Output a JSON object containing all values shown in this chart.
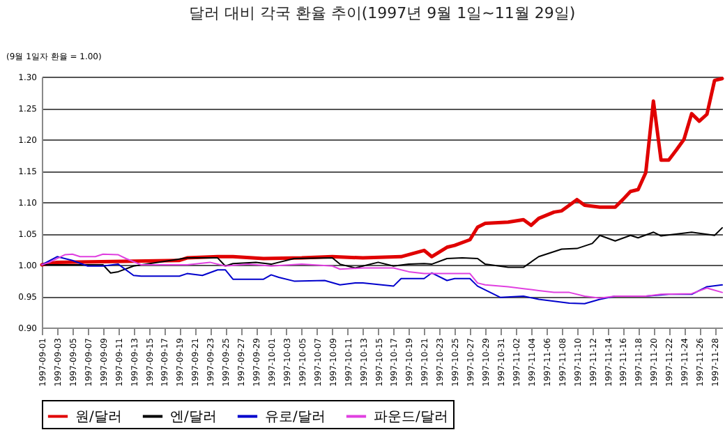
{
  "chart_data": {
    "type": "line",
    "title": "달러 대비 각국 환율 추이(1997년 9월 1일~11월 29일)",
    "ylabel": "(9월 1일자 환율 = 1.00)",
    "xlim": [
      "1997-09-01",
      "1997-11-29"
    ],
    "ylim": [
      0.9,
      1.3
    ],
    "yticks": [
      {
        "value": 0.9,
        "label": "0.90"
      },
      {
        "value": 0.95,
        "label": "0.95"
      },
      {
        "value": 1,
        "label": "1.00"
      },
      {
        "value": 1.05,
        "label": "1.05"
      },
      {
        "value": 1.1,
        "label": "1.10"
      },
      {
        "value": 1.15,
        "label": "1.15"
      },
      {
        "value": 1.2,
        "label": "1.20"
      },
      {
        "value": 1.25,
        "label": "1.25"
      },
      {
        "value": 1.3,
        "label": "1.30"
      }
    ],
    "xticks": [
      "1997-09-01",
      "1997-09-03",
      "1997-09-05",
      "1997-09-07",
      "1997-09-09",
      "1997-09-11",
      "1997-09-13",
      "1997-09-15",
      "1997-09-17",
      "1997-09-19",
      "1997-09-21",
      "1997-09-23",
      "1997-09-25",
      "1997-09-27",
      "1997-09-29",
      "1997-10-01",
      "1997-10-03",
      "1997-10-05",
      "1997-10-07",
      "1997-10-09",
      "1997-10-11",
      "1997-10-13",
      "1997-10-15",
      "1997-10-17",
      "1997-10-19",
      "1997-10-21",
      "1997-10-23",
      "1997-10-25",
      "1997-10-27",
      "1997-10-29",
      "1997-10-31",
      "1997-11-02",
      "1997-11-04",
      "1997-11-06",
      "1997-11-08",
      "1997-11-10",
      "1997-11-12",
      "1997-11-14",
      "1997-11-16",
      "1997-11-18",
      "1997-11-20",
      "1997-11-22",
      "1997-11-24",
      "1997-11-26",
      "1997-11-28"
    ],
    "grid": "y",
    "legend": "bottom",
    "marker": "none",
    "line_style": "solid",
    "series": [
      {
        "name": "원/달러",
        "color": "#e00000",
        "x": [
          "1997-09-01",
          "1997-09-03",
          "1997-09-19",
          "1997-09-20",
          "1997-09-24",
          "1997-09-26",
          "1997-09-30",
          "1997-10-05",
          "1997-10-09",
          "1997-10-13",
          "1997-10-18",
          "1997-10-21",
          "1997-10-22",
          "1997-10-24",
          "1997-10-25",
          "1997-10-27",
          "1997-10-28",
          "1997-10-29",
          "1997-11-01",
          "1997-11-03",
          "1997-11-04",
          "1997-11-05",
          "1997-11-07",
          "1997-11-08",
          "1997-11-10",
          "1997-11-11",
          "1997-11-13",
          "1997-11-15",
          "1997-11-16",
          "1997-11-17",
          "1997-11-18",
          "1997-11-19",
          "1997-11-20",
          "1997-11-21",
          "1997-11-22",
          "1997-11-23",
          "1997-11-24",
          "1997-11-25",
          "1997-11-26",
          "1997-11-27",
          "1997-11-28",
          "1997-11-29"
        ],
        "values": [
          1.0,
          1.004,
          1.007,
          1.011,
          1.013,
          1.013,
          1.01,
          1.011,
          1.013,
          1.011,
          1.013,
          1.023,
          1.013,
          1.028,
          1.031,
          1.04,
          1.06,
          1.066,
          1.068,
          1.072,
          1.063,
          1.074,
          1.084,
          1.086,
          1.104,
          1.095,
          1.092,
          1.092,
          1.104,
          1.117,
          1.12,
          1.147,
          1.261,
          1.167,
          1.167,
          1.183,
          1.2,
          1.241,
          1.229,
          1.24,
          1.294,
          1.297
        ]
      },
      {
        "name": "엔/달러",
        "color": "#000000",
        "x": [
          "1997-09-01",
          "1997-09-09",
          "1997-09-10",
          "1997-09-11",
          "1997-09-13",
          "1997-09-20",
          "1997-09-24",
          "1997-09-25",
          "1997-09-26",
          "1997-09-29",
          "1997-10-01",
          "1997-10-04",
          "1997-10-09",
          "1997-10-10",
          "1997-10-12",
          "1997-10-13",
          "1997-10-15",
          "1997-10-17",
          "1997-10-19",
          "1997-10-21",
          "1997-10-22",
          "1997-10-24",
          "1997-10-26",
          "1997-10-28",
          "1997-10-29",
          "1997-11-01",
          "1997-11-03",
          "1997-11-05",
          "1997-11-08",
          "1997-11-10",
          "1997-11-12",
          "1997-11-13",
          "1997-11-15",
          "1997-11-17",
          "1997-11-18",
          "1997-11-20",
          "1997-11-21",
          "1997-11-25",
          "1997-11-28",
          "1997-11-29"
        ],
        "values": [
          1.0,
          1.0,
          0.987,
          0.989,
          0.998,
          1.011,
          1.011,
          0.998,
          1.002,
          1.004,
          1.001,
          1.01,
          1.011,
          1.001,
          0.995,
          0.998,
          1.004,
          0.998,
          1.001,
          1.002,
          1.001,
          1.01,
          1.011,
          1.01,
          1.001,
          0.996,
          0.996,
          1.013,
          1.025,
          1.026,
          1.034,
          1.047,
          1.038,
          1.047,
          1.043,
          1.052,
          1.046,
          1.052,
          1.047,
          1.059
        ]
      },
      {
        "name": "유로/달러",
        "color": "#0000cc",
        "x": [
          "1997-09-01",
          "1997-09-03",
          "1997-09-05",
          "1997-09-07",
          "1997-09-09",
          "1997-09-11",
          "1997-09-13",
          "1997-09-14",
          "1997-09-19",
          "1997-09-20",
          "1997-09-22",
          "1997-09-24",
          "1997-09-25",
          "1997-09-26",
          "1997-09-30",
          "1997-10-01",
          "1997-10-02",
          "1997-10-04",
          "1997-10-08",
          "1997-10-10",
          "1997-10-12",
          "1997-10-13",
          "1997-10-17",
          "1997-10-18",
          "1997-10-21",
          "1997-10-22",
          "1997-10-24",
          "1997-10-25",
          "1997-10-27",
          "1997-10-28",
          "1997-10-31",
          "1997-11-03",
          "1997-11-05",
          "1997-11-09",
          "1997-11-11",
          "1997-11-13",
          "1997-11-15",
          "1997-11-19",
          "1997-11-22",
          "1997-11-25",
          "1997-11-27",
          "1997-11-29"
        ],
        "values": [
          1.0,
          1.013,
          1.007,
          0.998,
          0.998,
          1.001,
          0.983,
          0.982,
          0.982,
          0.986,
          0.983,
          0.992,
          0.992,
          0.977,
          0.977,
          0.984,
          0.98,
          0.974,
          0.975,
          0.968,
          0.971,
          0.971,
          0.966,
          0.978,
          0.978,
          0.987,
          0.975,
          0.978,
          0.978,
          0.966,
          0.948,
          0.95,
          0.945,
          0.939,
          0.938,
          0.945,
          0.95,
          0.95,
          0.953,
          0.953,
          0.965,
          0.968
        ]
      },
      {
        "name": "파운드/달러",
        "color": "#e040e0",
        "x": [
          "1997-09-01",
          "1997-09-02",
          "1997-09-04",
          "1997-09-05",
          "1997-09-06",
          "1997-09-08",
          "1997-09-09",
          "1997-09-11",
          "1997-09-12",
          "1997-09-14",
          "1997-09-20",
          "1997-09-23",
          "1997-09-25",
          "1997-09-28",
          "1997-10-01",
          "1997-10-05",
          "1997-10-09",
          "1997-10-10",
          "1997-10-13",
          "1997-10-16",
          "1997-10-17",
          "1997-10-19",
          "1997-10-21",
          "1997-10-24",
          "1997-10-27",
          "1997-10-28",
          "1997-10-29",
          "1997-11-01",
          "1997-11-03",
          "1997-11-05",
          "1997-11-07",
          "1997-11-09",
          "1997-11-11",
          "1997-11-13",
          "1997-11-15",
          "1997-11-19",
          "1997-11-21",
          "1997-11-25",
          "1997-11-27",
          "1997-11-29"
        ],
        "values": [
          1.0,
          1.004,
          1.016,
          1.017,
          1.013,
          1.013,
          1.017,
          1.016,
          1.01,
          1.0,
          1.0,
          1.004,
          0.998,
          1.001,
          0.998,
          1.001,
          0.998,
          0.993,
          0.995,
          0.995,
          0.995,
          0.989,
          0.986,
          0.986,
          0.986,
          0.971,
          0.968,
          0.965,
          0.962,
          0.959,
          0.956,
          0.956,
          0.95,
          0.947,
          0.95,
          0.95,
          0.953,
          0.954,
          0.963,
          0.956
        ]
      }
    ]
  }
}
